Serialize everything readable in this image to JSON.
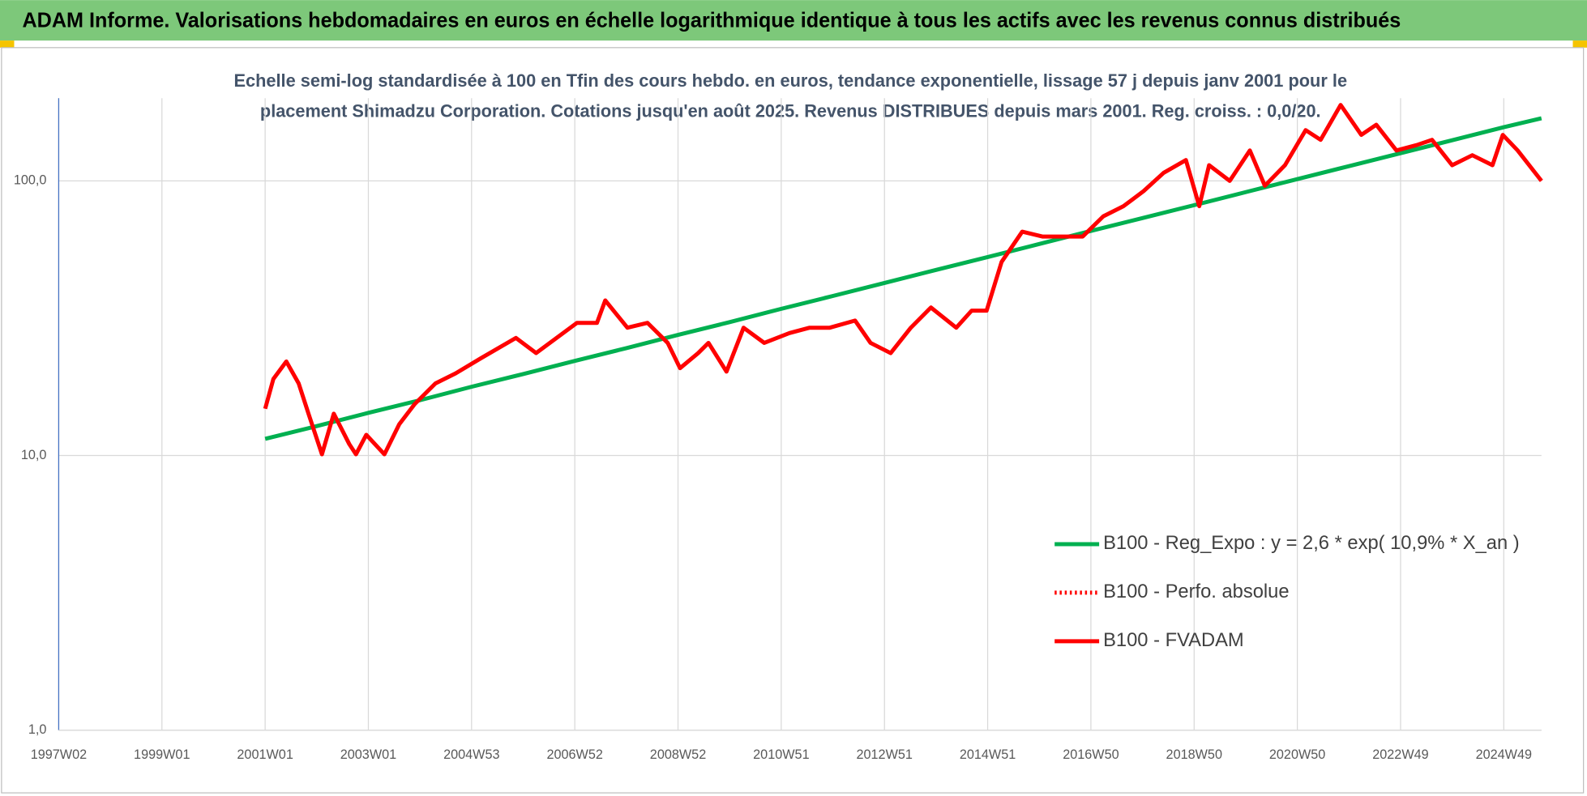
{
  "chart_data": {
    "type": "line",
    "title": "ADAM Informe. Valorisations hebdomadaires en euros en échelle logarithmique identique à tous les actifs avec les revenus connus distribués",
    "subtitle": [
      "Echelle semi-log standardisée à 100 en Tfin des cours hebdo. en euros, tendance exponentielle, lissage 57 j depuis janv 2001 pour le",
      "placement Shimadzu Corporation. Cotations jusqu'en août 2025. Revenus DISTRIBUES depuis mars 2001. Reg. croiss. : 0,0/20."
    ],
    "log_y": true,
    "grid": true,
    "legend": "lower right",
    "xlim": [
      1997,
      2025.73
    ],
    "xticks": [
      {
        "value": 1997,
        "label": "1997W02"
      },
      {
        "value": 1999,
        "label": "1999W01"
      },
      {
        "value": 2001,
        "label": "2001W01"
      },
      {
        "value": 2003,
        "label": "2003W01"
      },
      {
        "value": 2005,
        "label": "2004W53"
      },
      {
        "value": 2007,
        "label": "2006W52"
      },
      {
        "value": 2009,
        "label": "2008W52"
      },
      {
        "value": 2011,
        "label": "2010W51"
      },
      {
        "value": 2013,
        "label": "2012W51"
      },
      {
        "value": 2015,
        "label": "2014W51"
      },
      {
        "value": 2017,
        "label": "2016W50"
      },
      {
        "value": 2019,
        "label": "2018W50"
      },
      {
        "value": 2021,
        "label": "2020W50"
      },
      {
        "value": 2023,
        "label": "2022W49"
      },
      {
        "value": 2025,
        "label": "2024W49"
      }
    ],
    "ylim": [
      1,
      200
    ],
    "yticks": [
      {
        "value": 1,
        "label": "1,0"
      },
      {
        "value": 10,
        "label": "10,0"
      },
      {
        "value": 100,
        "label": "100,0"
      }
    ],
    "series": [
      {
        "name": "B100 - Reg_Expo : y = 2,6 * exp( 10,9% *  X_an )",
        "color": "#00b050",
        "dash": "solid",
        "x": [
          2001,
          2002,
          2003,
          2004,
          2005,
          2006,
          2007,
          2008,
          2009,
          2010,
          2011,
          2012,
          2013,
          2014,
          2015,
          2016,
          2017,
          2018,
          2019,
          2020,
          2021,
          2022,
          2023,
          2024,
          2025,
          2025.73
        ],
        "values": [
          11.5,
          12.8,
          14.3,
          15.9,
          17.8,
          19.8,
          22.1,
          24.6,
          27.5,
          30.6,
          34.2,
          38.1,
          42.5,
          47.4,
          52.8,
          58.9,
          65.7,
          73.2,
          81.6,
          91.0,
          101.5,
          113.1,
          126.1,
          140.6,
          156.8,
          169
        ]
      },
      {
        "name": "B100 - Perfo. absolue",
        "color": "#ff0000",
        "dash": "dotted",
        "x": [],
        "values": []
      },
      {
        "name": "B100 - FVADAM",
        "color": "#ff0000",
        "dash": "solid",
        "x": [
          2001.0,
          2001.16,
          2001.41,
          2001.65,
          2001.84,
          2002.1,
          2002.33,
          2002.63,
          2002.76,
          2002.96,
          2003.31,
          2003.6,
          2003.9,
          2004.3,
          2004.69,
          2005.18,
          2005.86,
          2006.25,
          2007.04,
          2007.43,
          2007.59,
          2008.02,
          2008.41,
          2008.8,
          2009.04,
          2009.39,
          2009.59,
          2009.94,
          2010.27,
          2010.67,
          2011.16,
          2011.55,
          2011.94,
          2012.43,
          2012.73,
          2013.12,
          2013.51,
          2013.9,
          2014.39,
          2014.69,
          2014.98,
          2015.27,
          2015.67,
          2016.06,
          2016.45,
          2016.84,
          2017.24,
          2017.63,
          2018.02,
          2018.41,
          2018.84,
          2019.1,
          2019.29,
          2019.69,
          2020.08,
          2020.37,
          2020.76,
          2021.16,
          2021.45,
          2021.84,
          2022.24,
          2022.53,
          2022.92,
          2023.31,
          2023.61,
          2024.0,
          2024.39,
          2024.78,
          2024.98,
          2025.27,
          2025.73
        ],
        "values": [
          14.8,
          19,
          22,
          18.3,
          14.2,
          10.1,
          14.2,
          11,
          10.1,
          11.9,
          10.1,
          13,
          15.4,
          18.3,
          19.9,
          22.6,
          26.8,
          23.6,
          30.4,
          30.4,
          36.7,
          29.2,
          30.4,
          25.7,
          20.8,
          23.6,
          25.7,
          20.2,
          29.2,
          25.7,
          27.9,
          29.2,
          29.2,
          31,
          25.7,
          23.6,
          29.2,
          34.6,
          29.2,
          33.7,
          33.7,
          50.7,
          65.3,
          62.7,
          62.7,
          62.7,
          74.3,
          80.9,
          91.8,
          107,
          119,
          80.9,
          114,
          100,
          129,
          96,
          114,
          153,
          141,
          189,
          147,
          160,
          129,
          135,
          141,
          114,
          124,
          114,
          147,
          129,
          100
        ]
      }
    ]
  }
}
